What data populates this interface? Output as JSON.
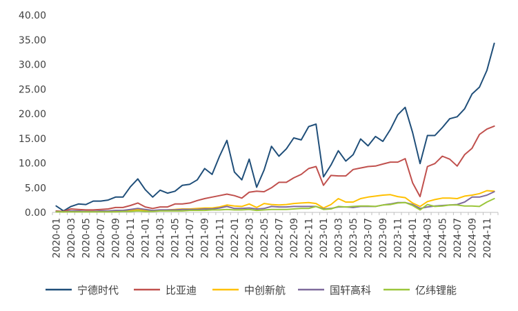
{
  "chart_data": {
    "type": "line",
    "title": "",
    "xlabel": "",
    "ylabel": "",
    "ylim": [
      0,
      40
    ],
    "yticks": [
      "0.00",
      "5.00",
      "10.00",
      "15.00",
      "20.00",
      "25.00",
      "30.00",
      "35.00",
      "40.00"
    ],
    "x": [
      "2020-01",
      "2020-02",
      "2020-03",
      "2020-04",
      "2020-05",
      "2020-06",
      "2020-07",
      "2020-08",
      "2020-09",
      "2020-10",
      "2020-11",
      "2020-12",
      "2021-01",
      "2021-02",
      "2021-03",
      "2021-04",
      "2021-05",
      "2021-06",
      "2021-07",
      "2021-08",
      "2021-09",
      "2021-10",
      "2021-11",
      "2021-12",
      "2022-01",
      "2022-02",
      "2022-03",
      "2022-04",
      "2022-05",
      "2022-06",
      "2022-07",
      "2022-08",
      "2022-09",
      "2022-10",
      "2022-11",
      "2022-12",
      "2023-01",
      "2023-02",
      "2023-03",
      "2023-04",
      "2023-05",
      "2023-06",
      "2023-07",
      "2023-08",
      "2023-09",
      "2023-10",
      "2023-11",
      "2023-12",
      "2024-01",
      "2024-02",
      "2024-03",
      "2024-04",
      "2024-05",
      "2024-06",
      "2024-07",
      "2024-08",
      "2024-09",
      "2024-10",
      "2024-11",
      "2024-12"
    ],
    "xtick_labels": [
      "2020-01",
      "2020-03",
      "2020-05",
      "2020-07",
      "2020-09",
      "2020-11",
      "2021-01",
      "2021-03",
      "2021-05",
      "2021-07",
      "2021-09",
      "2021-11",
      "2022-01",
      "2022-03",
      "2022-05",
      "2022-07",
      "2022-09",
      "2022-11",
      "2023-01",
      "2023-03",
      "2023-05",
      "2023-07",
      "2023-09",
      "2023-11",
      "2024-01",
      "2024-03",
      "2024-05",
      "2024-07",
      "2024-09",
      "2024-11"
    ],
    "legend_position": "bottom",
    "grid": false,
    "series": [
      {
        "name": "宁德时代",
        "color": "#1f4e79",
        "values": [
          1.3,
          0.3,
          1.2,
          1.7,
          1.6,
          2.3,
          2.3,
          2.5,
          3.1,
          3.1,
          5.2,
          6.8,
          4.6,
          3.1,
          4.5,
          3.9,
          4.3,
          5.5,
          5.7,
          6.6,
          8.9,
          7.7,
          11.4,
          14.6,
          8.2,
          6.6,
          10.8,
          5.1,
          8.6,
          13.4,
          11.4,
          12.9,
          15.1,
          14.7,
          17.4,
          17.9,
          7.2,
          9.6,
          12.5,
          10.4,
          11.7,
          14.9,
          13.5,
          15.4,
          14.4,
          16.8,
          19.8,
          21.3,
          16.2,
          9.9,
          15.6,
          15.6,
          17.2,
          19.0,
          19.4,
          21.0,
          24.0,
          25.4,
          28.8,
          34.3
        ]
      },
      {
        "name": "比亚迪",
        "color": "#c0504d",
        "values": [
          0.3,
          0.2,
          0.7,
          0.6,
          0.5,
          0.5,
          0.6,
          0.7,
          1.0,
          1.0,
          1.4,
          1.9,
          1.1,
          0.8,
          1.1,
          1.1,
          1.7,
          1.7,
          1.9,
          2.4,
          2.8,
          3.1,
          3.4,
          3.7,
          3.4,
          2.9,
          4.1,
          4.3,
          4.2,
          5.0,
          6.1,
          6.1,
          7.0,
          7.7,
          8.9,
          9.3,
          5.5,
          7.5,
          7.4,
          7.4,
          8.7,
          9.0,
          9.3,
          9.4,
          9.8,
          10.2,
          10.2,
          10.9,
          6.0,
          3.2,
          9.3,
          9.9,
          11.4,
          10.8,
          9.4,
          11.7,
          13.0,
          15.8,
          16.9,
          17.5
        ]
      },
      {
        "name": "中创新航",
        "color": "#ffc000",
        "values": [
          0.2,
          0.1,
          0.2,
          0.2,
          0.2,
          0.2,
          0.2,
          0.3,
          0.3,
          0.3,
          0.4,
          0.6,
          0.4,
          0.3,
          0.4,
          0.5,
          0.6,
          0.7,
          0.7,
          0.8,
          0.9,
          0.9,
          1.1,
          1.5,
          1.3,
          1.2,
          1.7,
          1.0,
          1.8,
          1.6,
          1.5,
          1.6,
          1.8,
          1.9,
          2.0,
          1.8,
          0.9,
          1.6,
          2.8,
          2.1,
          2.1,
          2.8,
          3.1,
          3.3,
          3.5,
          3.6,
          3.2,
          3.0,
          1.9,
          1.2,
          2.2,
          2.6,
          2.9,
          2.9,
          2.8,
          3.3,
          3.5,
          3.8,
          4.4,
          4.3
        ]
      },
      {
        "name": "国轩高科",
        "color": "#7e6a9c",
        "values": [
          0.2,
          0.1,
          0.3,
          0.3,
          0.2,
          0.2,
          0.3,
          0.3,
          0.4,
          0.4,
          0.6,
          0.8,
          0.6,
          0.4,
          0.5,
          0.5,
          0.5,
          0.6,
          0.6,
          0.6,
          0.7,
          0.7,
          0.9,
          1.2,
          0.8,
          0.8,
          0.9,
          0.7,
          0.8,
          1.2,
          1.1,
          1.1,
          1.2,
          1.2,
          1.2,
          1.2,
          0.7,
          0.8,
          1.1,
          1.1,
          1.0,
          1.2,
          1.2,
          1.2,
          1.5,
          1.7,
          2.0,
          2.0,
          1.6,
          0.8,
          1.1,
          1.3,
          1.4,
          1.5,
          1.6,
          2.1,
          3.1,
          3.1,
          3.5,
          4.2
        ]
      },
      {
        "name": "亿纬锂能",
        "color": "#9bc63b",
        "values": [
          0.1,
          0.1,
          0.1,
          0.1,
          0.1,
          0.1,
          0.1,
          0.1,
          0.1,
          0.2,
          0.2,
          0.3,
          0.2,
          0.2,
          0.3,
          0.3,
          0.3,
          0.3,
          0.4,
          0.4,
          0.4,
          0.5,
          0.5,
          0.6,
          0.5,
          0.5,
          0.6,
          0.4,
          0.5,
          0.6,
          0.6,
          0.6,
          0.7,
          0.8,
          0.8,
          1.2,
          0.6,
          0.7,
          1.2,
          1.1,
          1.2,
          1.3,
          1.3,
          1.2,
          1.5,
          1.6,
          1.9,
          2.0,
          1.4,
          0.5,
          1.6,
          1.2,
          1.3,
          1.5,
          1.5,
          1.3,
          1.3,
          1.2,
          2.1,
          2.8
        ]
      }
    ]
  }
}
